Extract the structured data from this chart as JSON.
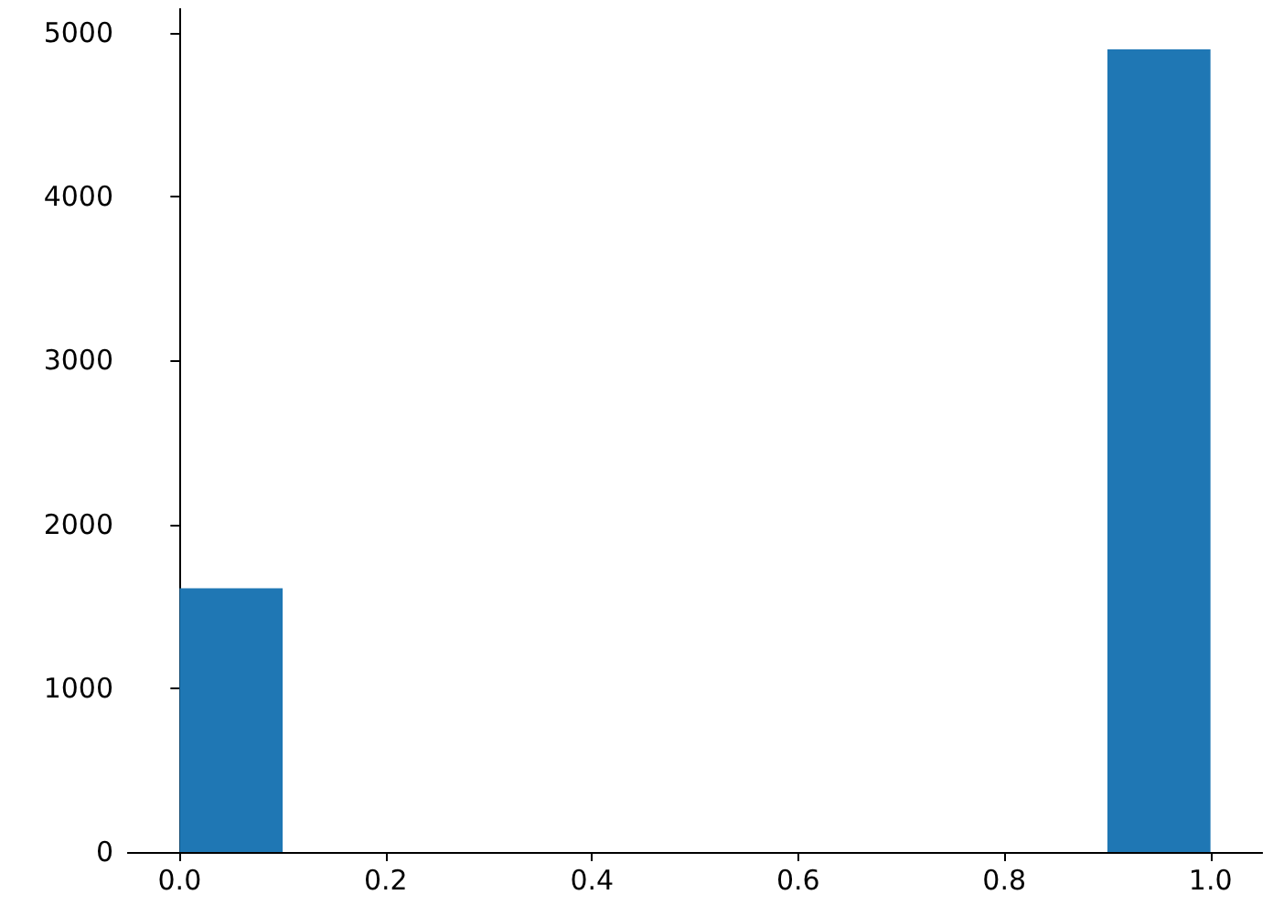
{
  "chart_data": {
    "type": "histogram",
    "bins": [
      0,
      0.1,
      0.2,
      0.3,
      0.4,
      0.5,
      0.6,
      0.7,
      0.8,
      0.9,
      1.0
    ],
    "values": [
      1610,
      0,
      0,
      0,
      0,
      0,
      0,
      0,
      0,
      4900
    ],
    "color": "#1f77b4",
    "xlim": [
      -0.05,
      1.05
    ],
    "xticks": [
      {
        "value": 0,
        "label": "0.0"
      },
      {
        "value": 0.2,
        "label": "0.2"
      },
      {
        "value": 0.4,
        "label": "0.4"
      },
      {
        "value": 0.6,
        "label": "0.6"
      },
      {
        "value": 0.8,
        "label": "0.8"
      },
      {
        "value": 1,
        "label": "1.0"
      }
    ],
    "ylim": [
      0,
      5145
    ],
    "yticks": [
      0,
      1000,
      2000,
      3000,
      4000,
      5000
    ],
    "grid": false
  }
}
